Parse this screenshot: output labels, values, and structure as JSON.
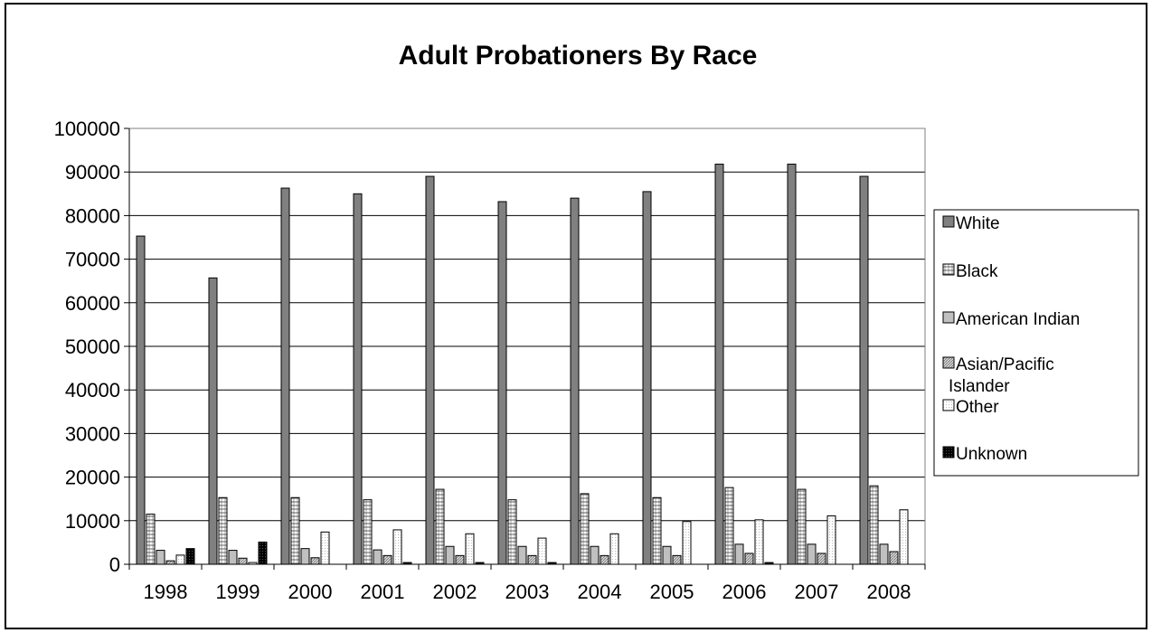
{
  "chart_data": {
    "type": "bar",
    "title": "Adult Probationers By Race",
    "xlabel": "",
    "ylabel": "",
    "categories": [
      "1998",
      "1999",
      "2000",
      "2001",
      "2002",
      "2003",
      "2004",
      "2005",
      "2006",
      "2007",
      "2008"
    ],
    "ylim": [
      0,
      100000
    ],
    "yticks": [
      "0",
      "10000",
      "20000",
      "30000",
      "40000",
      "50000",
      "60000",
      "70000",
      "80000",
      "90000",
      "100000"
    ],
    "grid": true,
    "legend_position": "right",
    "series": [
      {
        "name": "White",
        "color": "#808080",
        "values": [
          75300,
          65700,
          86300,
          85000,
          89000,
          83200,
          84000,
          85500,
          91800,
          91800,
          89000
        ]
      },
      {
        "name": "Black",
        "color": "#e6e6e6",
        "values": [
          11500,
          15300,
          15300,
          14800,
          17200,
          14800,
          16200,
          15300,
          17600,
          17200,
          18000
        ]
      },
      {
        "name": "American Indian",
        "color": "#c0c0c0",
        "values": [
          3200,
          3200,
          3600,
          3300,
          4100,
          4100,
          4100,
          4100,
          4600,
          4600,
          4600
        ]
      },
      {
        "name": "Asian/Pacific Islander",
        "color": "#b4b4b4",
        "values": [
          800,
          1400,
          1500,
          2000,
          2000,
          2000,
          2000,
          2000,
          2500,
          2500,
          2900
        ]
      },
      {
        "name": "Other",
        "color": "#f5f5f5",
        "values": [
          2100,
          400,
          7400,
          7900,
          7000,
          6000,
          7000,
          9800,
          10200,
          11100,
          12500
        ]
      },
      {
        "name": "Unknown",
        "color": "#111111",
        "values": [
          3600,
          5100,
          0,
          400,
          400,
          400,
          0,
          0,
          400,
          0,
          0
        ]
      }
    ]
  }
}
